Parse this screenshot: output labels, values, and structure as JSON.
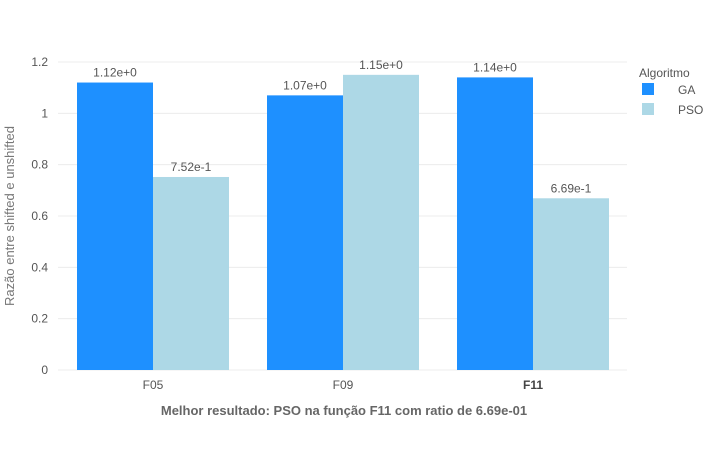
{
  "chart_data": {
    "type": "bar",
    "categories": [
      "F05",
      "F09",
      "F11"
    ],
    "highlight_category": "F11",
    "series": [
      {
        "name": "GA",
        "values": [
          1.12,
          1.07,
          1.14
        ],
        "labels": [
          "1.12e+0",
          "1.07e+0",
          "1.14e+0"
        ],
        "color": "#1e90ff"
      },
      {
        "name": "PSO",
        "values": [
          0.752,
          1.15,
          0.669
        ],
        "labels": [
          "7.52e-1",
          "1.15e+0",
          "6.69e-1"
        ],
        "color": "#add8e6"
      }
    ],
    "xlabel": "Melhor resultado: PSO na função F11 com ratio de 6.69e-01",
    "ylabel": "Razão entre shifted e unshifted",
    "ylim": [
      0,
      1.2
    ],
    "yticks": [
      0,
      0.2,
      0.4,
      0.6,
      0.8,
      1,
      1.2
    ],
    "ytick_labels": [
      "0",
      "0.2",
      "0.4",
      "0.6",
      "0.8",
      "1",
      "1.2"
    ],
    "grid": true,
    "legend": {
      "title": "Algoritmo",
      "position": "right"
    }
  }
}
